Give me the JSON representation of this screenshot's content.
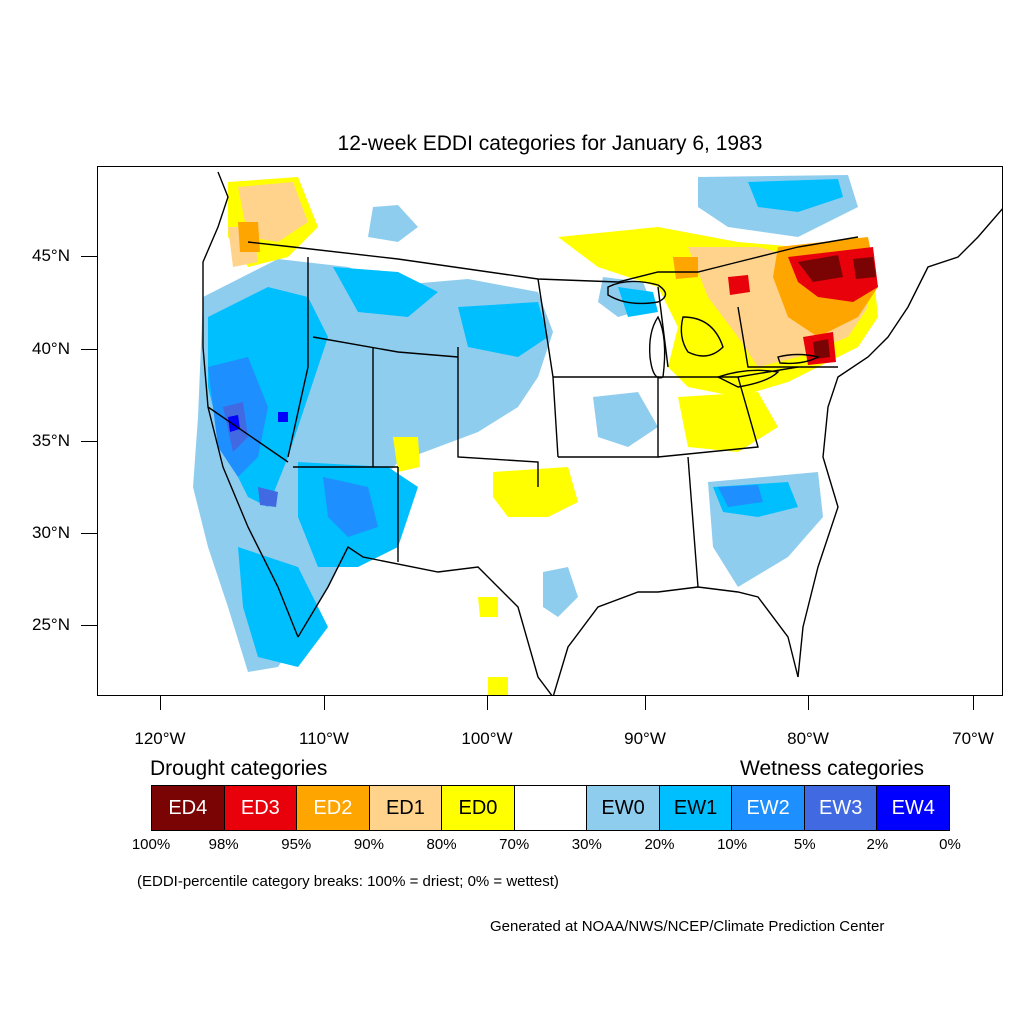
{
  "title": "12-week EDDI categories for January 6, 1983",
  "lat_labels": [
    "45°N",
    "40°N",
    "35°N",
    "30°N",
    "25°N"
  ],
  "lon_labels": [
    "120°W",
    "110°W",
    "100°W",
    "90°W",
    "80°W",
    "70°W"
  ],
  "legend": {
    "drought_heading": "Drought categories",
    "wetness_heading": "Wetness categories",
    "categories": [
      {
        "label": "ED4",
        "color": "#7a0403"
      },
      {
        "label": "ED3",
        "color": "#e8000b"
      },
      {
        "label": "ED2",
        "color": "#ffa500"
      },
      {
        "label": "ED1",
        "color": "#ffd38c"
      },
      {
        "label": "ED0",
        "color": "#ffff00"
      },
      {
        "label": "",
        "color": "#ffffff"
      },
      {
        "label": "EW0",
        "color": "#8fcdef"
      },
      {
        "label": "EW1",
        "color": "#00bfff"
      },
      {
        "label": "EW2",
        "color": "#1e8fff"
      },
      {
        "label": "EW3",
        "color": "#4169e1"
      },
      {
        "label": "EW4",
        "color": "#0000ff"
      }
    ],
    "breaks": [
      "100%",
      "98%",
      "95%",
      "90%",
      "80%",
      "70%",
      "30%",
      "20%",
      "10%",
      "5%",
      "2%",
      "0%"
    ]
  },
  "note": "(EDDI-percentile category breaks: 100% = driest; 0% = wettest)",
  "credit": "Generated at NOAA/NWS/NCEP/Climate Prediction Center"
}
